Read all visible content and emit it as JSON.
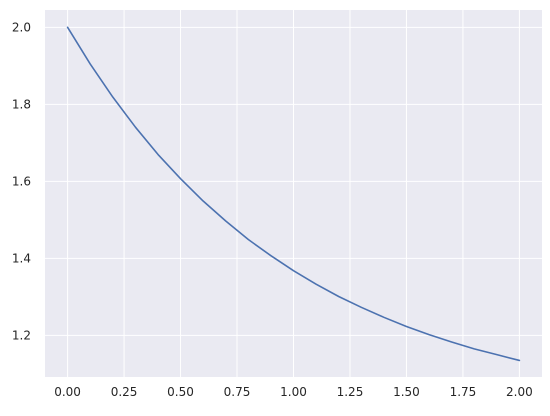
{
  "chart_data": {
    "type": "line",
    "title": "",
    "xlabel": "",
    "ylabel": "",
    "xlim": [
      -0.1,
      2.1
    ],
    "ylim": [
      1.092,
      2.045
    ],
    "x_ticks": [
      0.0,
      0.25,
      0.5,
      0.75,
      1.0,
      1.25,
      1.5,
      1.75,
      2.0
    ],
    "x_tick_labels": [
      "0.00",
      "0.25",
      "0.50",
      "0.75",
      "1.00",
      "1.25",
      "1.50",
      "1.75",
      "2.00"
    ],
    "y_ticks": [
      1.2,
      1.4,
      1.6,
      1.8,
      2.0
    ],
    "y_tick_labels": [
      "1.2",
      "1.4",
      "1.6",
      "1.8",
      "2.0"
    ],
    "grid": true,
    "legend": "none",
    "series": [
      {
        "color": "#4c72b0",
        "x": [
          0.0,
          0.1,
          0.2,
          0.3,
          0.4,
          0.5,
          0.6,
          0.7,
          0.8,
          0.9,
          1.0,
          1.1,
          1.2,
          1.3,
          1.4,
          1.5,
          1.6,
          1.7,
          1.8,
          1.9,
          2.0
        ],
        "y": [
          2.0,
          1.905,
          1.819,
          1.741,
          1.67,
          1.607,
          1.549,
          1.497,
          1.449,
          1.407,
          1.368,
          1.333,
          1.301,
          1.273,
          1.247,
          1.223,
          1.202,
          1.183,
          1.165,
          1.15,
          1.135
        ]
      }
    ],
    "colors": {
      "plot_background": "#eaeaf2",
      "grid": "#ffffff",
      "text": "#262626"
    }
  }
}
